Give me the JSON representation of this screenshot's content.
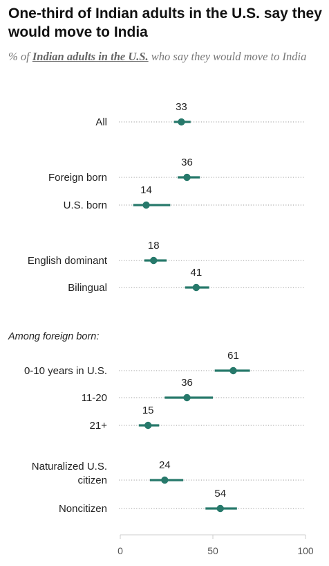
{
  "header": {
    "title": "One-third of Indian adults in the U.S. say they would move to India",
    "subtitle_prefix": "% of ",
    "subtitle_emphasis": "Indian adults in the U.S.",
    "subtitle_suffix": " who say they would move to India"
  },
  "chart_data": {
    "type": "dot",
    "title": "One-third of Indian adults in the U.S. say they would move to India",
    "xlim": [
      0,
      100
    ],
    "x_ticks": [
      "0",
      "50",
      "100"
    ],
    "section_labels": [
      "Among foreign born:"
    ],
    "categories": [
      {
        "label": "All",
        "value": 33,
        "low": 29,
        "high": 38
      },
      {
        "label": "Foreign born",
        "value": 36,
        "low": 31,
        "high": 43
      },
      {
        "label": "U.S. born",
        "value": 14,
        "low": 7,
        "high": 27
      },
      {
        "label": "English dominant",
        "value": 18,
        "low": 13,
        "high": 25
      },
      {
        "label": "Bilingual",
        "value": 41,
        "low": 35,
        "high": 48
      },
      {
        "label": "0-10 years in U.S.",
        "value": 61,
        "low": 51,
        "high": 70
      },
      {
        "label": "11-20",
        "value": 36,
        "low": 24,
        "high": 50
      },
      {
        "label": "21+",
        "value": 15,
        "low": 10,
        "high": 21
      },
      {
        "label": "Naturalized U.S. citizen",
        "label_lines": [
          "Naturalized U.S.",
          "citizen"
        ],
        "value": 24,
        "low": 16,
        "high": 34
      },
      {
        "label": "Noncitizen",
        "value": 54,
        "low": 46,
        "high": 63
      }
    ],
    "colors": {
      "dot": "#27796b",
      "ci": "#27796b",
      "dotted": "#9a9a9a",
      "axis": "#cccccc"
    },
    "grid": false
  }
}
